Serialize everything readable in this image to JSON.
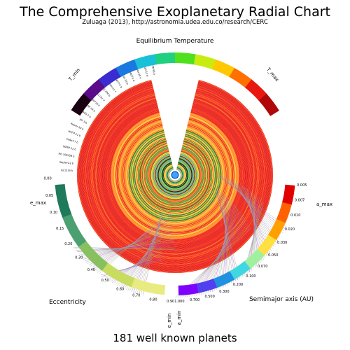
{
  "page": {
    "title": "The Comprehensive Exoplanetary Radial Chart",
    "subtitle": "Zuluaga (2013), http://astronomia.udea.edu.co/research/CERC",
    "footer": "181 well known planets"
  },
  "chart_data": {
    "type": "radial",
    "planet_count": 181,
    "scales": {
      "temperature": {
        "label": "Equilibrium Temperature",
        "min_label": "T_min",
        "max_label": "T_max",
        "colors": [
          "#1a0010",
          "#5a0a8a",
          "#3a2cd0",
          "#1a78e0",
          "#18c0d8",
          "#20d080",
          "#50e020",
          "#c8ec10",
          "#ffc800",
          "#ff7000",
          "#e81810",
          "#b00808"
        ]
      },
      "eccentricity": {
        "label": "Eccentricity",
        "ticks": [
          "0.00",
          "0.05",
          "0.10",
          "0.15",
          "0.20",
          "0.30",
          "0.40",
          "0.50",
          "0.60",
          "0.70",
          "0.80",
          "0.90"
        ],
        "min_label": "e_min",
        "max_label": "e_max",
        "colors": [
          "#1e7a5a",
          "#4aa070",
          "#88c060",
          "#c8dc60",
          "#e8ec80"
        ]
      },
      "semimajor_axis": {
        "label": "Semimajor axis (AU)",
        "ticks": [
          "0.005",
          "0.007",
          "0.010",
          "0.020",
          "0.030",
          "0.050",
          "0.070",
          "0.100",
          "0.200",
          "0.300",
          "0.500",
          "0.700",
          "1.000"
        ],
        "min_label": "a_min",
        "max_label": "a_max",
        "colors": [
          "#e00000",
          "#ff6000",
          "#ffa000",
          "#ffe040",
          "#a0f0a0",
          "#40d8e0",
          "#2090e0",
          "#5040f0",
          "#8000ff"
        ]
      }
    },
    "ring_palette": [
      "#e81810",
      "#ff3010",
      "#ff6010",
      "#ff9020",
      "#ffc030",
      "#f0e040",
      "#b0e020",
      "#30c040",
      "#108030",
      "#101010",
      "#2040c0",
      "#40a0ff"
    ],
    "planet_labels": [
      "GJ 1214 b",
      "Kepler-22 b",
      "HD 209458 b",
      "WASP-12 b",
      "CoRoT-7 b",
      "HAT-P-11 b",
      "Kepler-10 b",
      "XO-3 b",
      "TrES-2 b",
      "WASP-18 b",
      "HD 189733 b",
      "55 Cnc e",
      "GJ 436 b",
      "Kepler-11 f",
      "HAT-P-7 b",
      "WASP-33 b",
      "CoRoT-1 b",
      "Kepler-20 e",
      "KOI-13 b",
      "OGLE-TR-56 b"
    ]
  }
}
